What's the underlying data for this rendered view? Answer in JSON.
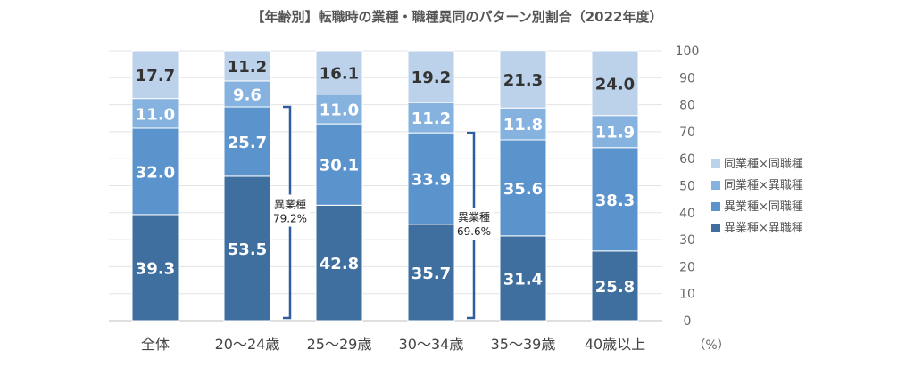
{
  "chart_data": {
    "type": "bar",
    "stacked": true,
    "title": "【年齢別】転職時の業種・職種異同のパターン別割合（2022年度）",
    "unit": "（%）",
    "categories": [
      "全体",
      "20～24歳",
      "25～29歳",
      "30～34歳",
      "35～39歳",
      "40歳以上"
    ],
    "series": [
      {
        "name": "異業種×異職種",
        "values": [
          39.3,
          53.5,
          42.8,
          35.7,
          31.4,
          25.8
        ],
        "color": "#3f6f9f"
      },
      {
        "name": "異業種×同職種",
        "values": [
          32.0,
          25.7,
          30.1,
          33.9,
          35.6,
          38.3
        ],
        "color": "#5b93cc"
      },
      {
        "name": "同業種×異職種",
        "values": [
          11.0,
          9.6,
          11.0,
          11.2,
          11.8,
          11.9
        ],
        "color": "#86b2df"
      },
      {
        "name": "同業種×同職種",
        "values": [
          17.7,
          11.2,
          16.1,
          19.2,
          21.3,
          24.0
        ],
        "color": "#bcd1ea"
      }
    ],
    "legend_order": [
      "同業種×同職種",
      "同業種×異職種",
      "異業種×同職種",
      "異業種×異職種"
    ],
    "ylim": [
      0,
      100
    ],
    "yticks": [
      0,
      10,
      20,
      30,
      40,
      50,
      60,
      70,
      80,
      90,
      100
    ],
    "y_axis_position": "right",
    "grid": true,
    "legend_position": "right",
    "annotations": [
      {
        "category": "20～24歳",
        "label": "異業種",
        "value": "79.2%"
      },
      {
        "category": "30～34歳",
        "label": "異業種",
        "value": "69.6%"
      }
    ]
  }
}
